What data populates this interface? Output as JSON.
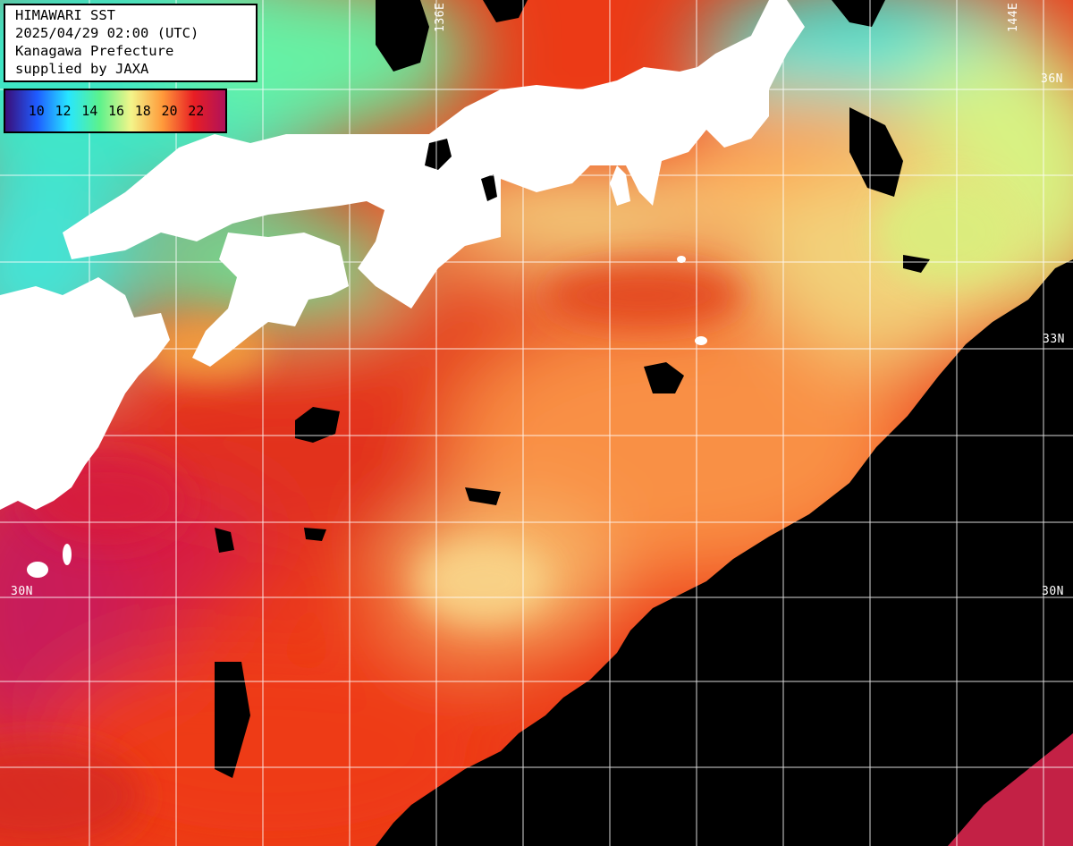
{
  "info": {
    "title": "HIMAWARI SST",
    "datetime": "2025/04/29 02:00 (UTC)",
    "region": "Kanagawa Prefecture",
    "credit": "supplied by JAXA"
  },
  "legend": {
    "ticks": [
      "10",
      "12",
      "14",
      "16",
      "18",
      "20",
      "22"
    ],
    "gradient_colors": [
      "#3a0e78",
      "#1e5bff",
      "#27e6ff",
      "#5cf28c",
      "#f3f58a",
      "#ff9a3a",
      "#e81e24",
      "#b0125a"
    ]
  },
  "grid_labels": {
    "lon_136": "136E",
    "lon_144": "144E",
    "lat_36": "36N",
    "lat_33": "33N",
    "lat_30_left": "30N",
    "lat_30_right": "30N"
  },
  "colors": {
    "land": "#ffffff",
    "no_data": "#000000",
    "grid": "#ffffff"
  }
}
